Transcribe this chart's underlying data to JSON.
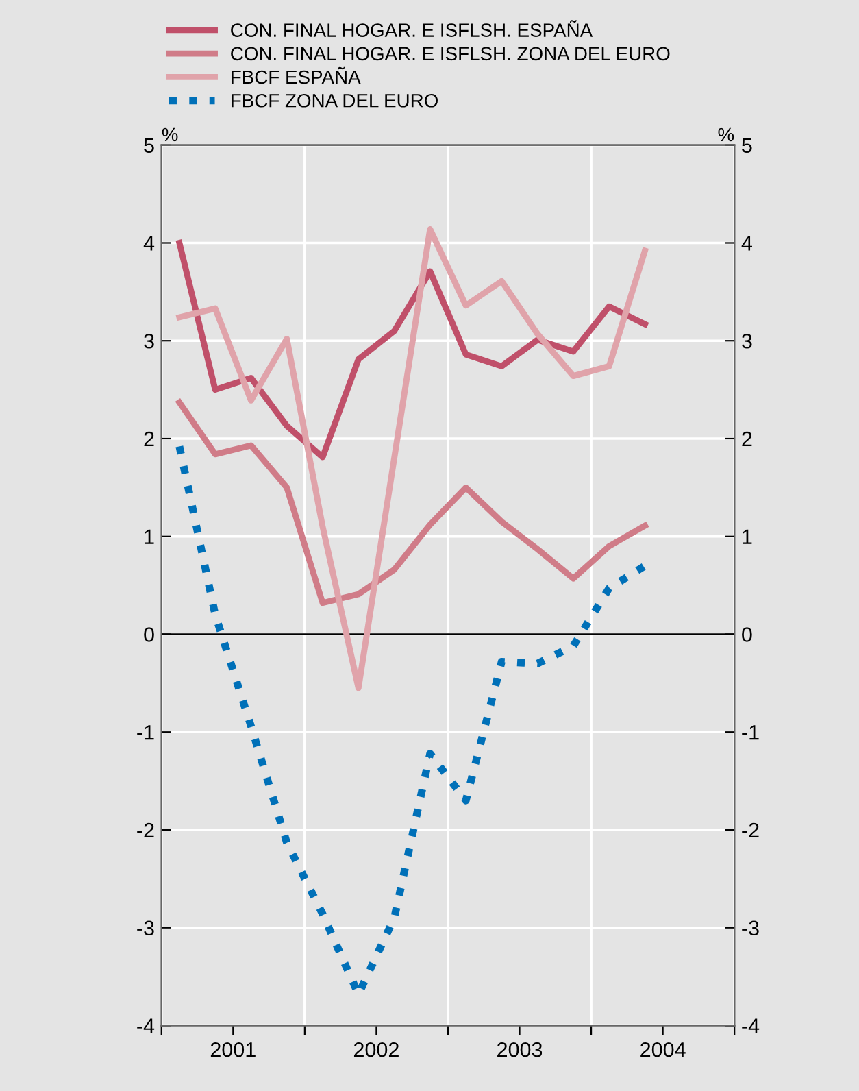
{
  "chart_data": {
    "type": "line",
    "x": [
      2001.125,
      2001.375,
      2001.625,
      2001.875,
      2002.125,
      2002.375,
      2002.625,
      2002.875,
      2003.125,
      2003.375,
      2003.625,
      2003.875,
      2004.125,
      2004.375
    ],
    "series": [
      {
        "name": "CON. FINAL HOGAR. E ISFLSH. ESPAÑA",
        "color": "#c0506a",
        "line_style": "solid",
        "values": [
          4.0,
          2.5,
          2.62,
          2.13,
          1.81,
          2.81,
          3.1,
          3.71,
          2.86,
          2.74,
          3.01,
          2.89,
          3.35,
          3.17
        ]
      },
      {
        "name": "CON. FINAL HOGAR. E ISFLSH. ZONA DEL EURO",
        "color": "#d07c88",
        "line_style": "solid",
        "values": [
          2.37,
          1.84,
          1.93,
          1.5,
          0.32,
          0.41,
          0.66,
          1.12,
          1.5,
          1.15,
          0.87,
          0.57,
          0.9,
          1.11
        ]
      },
      {
        "name": "FBCF ESPAÑA",
        "color": "#e0a3aa",
        "line_style": "solid",
        "values": [
          3.24,
          3.33,
          2.39,
          3.02,
          1.1,
          -0.55,
          1.8,
          4.14,
          3.36,
          3.61,
          3.07,
          2.64,
          2.74,
          3.92
        ]
      },
      {
        "name": "FBCF ZONA DEL EURO",
        "color": "#0070b8",
        "line_style": "dotted",
        "values": [
          1.92,
          0.2,
          -0.94,
          -2.13,
          -2.86,
          -3.68,
          -2.9,
          -1.22,
          -1.7,
          -0.28,
          -0.3,
          -0.12,
          0.47,
          0.7
        ]
      }
    ],
    "xlim": [
      2001,
      2005
    ],
    "xticks": [
      {
        "value": 2001,
        "label": null
      },
      {
        "value": 2001.5,
        "label": "2001"
      },
      {
        "value": 2002,
        "label": null
      },
      {
        "value": 2002.5,
        "label": "2002"
      },
      {
        "value": 2003,
        "label": null
      },
      {
        "value": 2003.5,
        "label": "2003"
      },
      {
        "value": 2004,
        "label": null
      },
      {
        "value": 2004.5,
        "label": "2004"
      },
      {
        "value": 2005,
        "label": null
      }
    ],
    "ylim": [
      -4,
      5
    ],
    "yticks": [
      -4,
      -3,
      -2,
      -1,
      0,
      1,
      2,
      3,
      4,
      5
    ],
    "y2lim": [
      -4,
      5
    ],
    "y2ticks": [
      -4,
      -3,
      -2,
      -1,
      0,
      1,
      2,
      3,
      4,
      5
    ],
    "ylabel": "%",
    "y2label": "%",
    "ref_lines": [
      {
        "axis": "y",
        "value": 0,
        "color": "#000000"
      }
    ],
    "grid": true,
    "legend": "top",
    "marker": "none"
  }
}
